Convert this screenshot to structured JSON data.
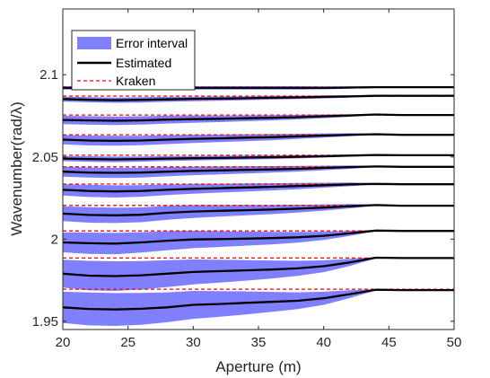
{
  "chart_data": {
    "type": "line",
    "xlabel": "Aperture (m)",
    "ylabel": "Wavenumber(rad/λ)",
    "xlim": [
      20,
      50
    ],
    "ylim": [
      1.945,
      2.14
    ],
    "x_ticks": [
      "20",
      "25",
      "30",
      "35",
      "40",
      "45",
      "50"
    ],
    "y_ticks": [
      "1.95",
      "2",
      "2.05",
      "2.1"
    ],
    "grid": false,
    "legend_position": "top-left",
    "legend": {
      "error": "Error interval",
      "estimated": "Estimated",
      "kraken": "Kraken"
    },
    "colors": {
      "error": "#8080ff",
      "estimated": "#000000",
      "kraken": "#ff0000"
    },
    "x": [
      20,
      22,
      24,
      26,
      28,
      30,
      32,
      34,
      36,
      38,
      40,
      42,
      44,
      46,
      48,
      50
    ],
    "modes": [
      {
        "kraken": 2.0925,
        "estimated": [
          2.092,
          2.092,
          2.092,
          2.092,
          2.092,
          2.092,
          2.092,
          2.092,
          2.092,
          2.092,
          2.092,
          2.0922,
          2.0924,
          2.0924,
          2.0924,
          2.0924
        ],
        "halfwidth": [
          0.001,
          0.001,
          0.001,
          0.001,
          0.001,
          0.001,
          0.001,
          0.001,
          0.001,
          0.001,
          0.0009,
          0.0007,
          0.0004,
          0.0004,
          0.0004,
          0.0004
        ]
      },
      {
        "kraken": 2.087,
        "estimated": [
          2.0852,
          2.0848,
          2.0845,
          2.0847,
          2.085,
          2.0853,
          2.0855,
          2.0857,
          2.086,
          2.0862,
          2.0865,
          2.0868,
          2.0872,
          2.0872,
          2.0872,
          2.0872
        ],
        "halfwidth": [
          0.0015,
          0.0016,
          0.0016,
          0.0016,
          0.0015,
          0.0014,
          0.0013,
          0.0012,
          0.0011,
          0.001,
          0.0009,
          0.0007,
          0.0004,
          0.0004,
          0.0004,
          0.0004
        ]
      },
      {
        "kraken": 2.0755,
        "estimated": [
          2.0725,
          2.0722,
          2.072,
          2.0722,
          2.0727,
          2.073,
          2.0732,
          2.0735,
          2.0738,
          2.0742,
          2.0747,
          2.0752,
          2.0758,
          2.0755,
          2.0755,
          2.0755
        ],
        "halfwidth": [
          0.0025,
          0.0026,
          0.0026,
          0.0025,
          0.0024,
          0.0022,
          0.002,
          0.0018,
          0.0016,
          0.0014,
          0.0011,
          0.0008,
          0.0004,
          0.0004,
          0.0004,
          0.0004
        ]
      },
      {
        "kraken": 2.0635,
        "estimated": [
          2.0605,
          2.06,
          2.0598,
          2.06,
          2.0605,
          2.061,
          2.0613,
          2.0617,
          2.062,
          2.0625,
          2.063,
          2.0635,
          2.0638,
          2.0634,
          2.0634,
          2.0634
        ],
        "halfwidth": [
          0.0028,
          0.003,
          0.003,
          0.0029,
          0.0027,
          0.0025,
          0.0023,
          0.0021,
          0.0019,
          0.0016,
          0.0013,
          0.0009,
          0.0004,
          0.0004,
          0.0004,
          0.0004
        ]
      },
      {
        "kraken": 2.051,
        "estimated": [
          2.049,
          2.0487,
          2.0485,
          2.0487,
          2.049,
          2.0492,
          2.0494,
          2.0496,
          2.0498,
          2.0501,
          2.0504,
          2.0508,
          2.0512,
          2.051,
          2.051,
          2.051
        ],
        "halfwidth": [
          0.0016,
          0.0017,
          0.0017,
          0.0016,
          0.0015,
          0.0014,
          0.0013,
          0.0012,
          0.0011,
          0.001,
          0.0008,
          0.0006,
          0.0004,
          0.0004,
          0.0004,
          0.0004
        ]
      },
      {
        "kraken": 2.044,
        "estimated": [
          2.041,
          2.0405,
          2.0403,
          2.0405,
          2.041,
          2.0415,
          2.0418,
          2.0421,
          2.0424,
          2.0428,
          2.0433,
          2.0438,
          2.0442,
          2.044,
          2.044,
          2.044
        ],
        "halfwidth": [
          0.003,
          0.0031,
          0.0031,
          0.003,
          0.0028,
          0.0026,
          0.0024,
          0.0022,
          0.002,
          0.0017,
          0.0014,
          0.001,
          0.0004,
          0.0004,
          0.0004,
          0.0004
        ]
      },
      {
        "kraken": 2.0335,
        "estimated": [
          2.03,
          2.0293,
          2.029,
          2.0293,
          2.03,
          2.0306,
          2.031,
          2.0314,
          2.0318,
          2.0323,
          2.0328,
          2.0333,
          2.0336,
          2.0334,
          2.0334,
          2.0334
        ],
        "halfwidth": [
          0.0035,
          0.0037,
          0.0037,
          0.0035,
          0.0032,
          0.003,
          0.0027,
          0.0025,
          0.0022,
          0.0019,
          0.0015,
          0.0011,
          0.0004,
          0.0004,
          0.0004,
          0.0004
        ]
      },
      {
        "kraken": 2.0205,
        "estimated": [
          2.0155,
          2.0147,
          2.0145,
          2.0148,
          2.016,
          2.0168,
          2.0172,
          2.0176,
          2.018,
          2.0185,
          2.0192,
          2.02,
          2.0207,
          2.0203,
          2.0203,
          2.0203
        ],
        "halfwidth": [
          0.0045,
          0.0047,
          0.0047,
          0.0045,
          0.0042,
          0.0039,
          0.0035,
          0.0032,
          0.0028,
          0.0024,
          0.0019,
          0.0013,
          0.0004,
          0.0004,
          0.0004,
          0.0004
        ]
      },
      {
        "kraken": 2.005,
        "estimated": [
          1.998,
          1.9975,
          1.9973,
          1.998,
          1.999,
          1.9998,
          2.0,
          2.0003,
          2.0006,
          2.0011,
          2.002,
          2.0035,
          2.0052,
          2.005,
          2.005,
          2.005
        ],
        "halfwidth": [
          0.006,
          0.0065,
          0.0065,
          0.0062,
          0.0058,
          0.0053,
          0.0048,
          0.0043,
          0.0038,
          0.0032,
          0.0025,
          0.0016,
          0.0004,
          0.0004,
          0.0004,
          0.0004
        ]
      },
      {
        "kraken": 1.9885,
        "estimated": [
          1.979,
          1.9778,
          1.9775,
          1.978,
          1.979,
          1.98,
          1.9805,
          1.981,
          1.9815,
          1.9822,
          1.9835,
          1.9858,
          1.9887,
          1.9885,
          1.9885,
          1.9885
        ],
        "halfwidth": [
          0.0085,
          0.009,
          0.009,
          0.0087,
          0.0082,
          0.0076,
          0.007,
          0.0063,
          0.0055,
          0.0046,
          0.0036,
          0.0022,
          0.0004,
          0.0004,
          0.0004,
          0.0004
        ]
      },
      {
        "kraken": 1.9695,
        "estimated": [
          1.9585,
          1.9575,
          1.9572,
          1.9576,
          1.9585,
          1.96,
          1.9605,
          1.9612,
          1.9618,
          1.9625,
          1.964,
          1.9665,
          1.9692,
          1.969,
          1.969,
          1.969
        ],
        "halfwidth": [
          0.0095,
          0.01,
          0.01,
          0.0097,
          0.0091,
          0.0085,
          0.0078,
          0.007,
          0.0061,
          0.0051,
          0.004,
          0.0024,
          0.0004,
          0.0004,
          0.0004,
          0.0004
        ]
      }
    ]
  }
}
